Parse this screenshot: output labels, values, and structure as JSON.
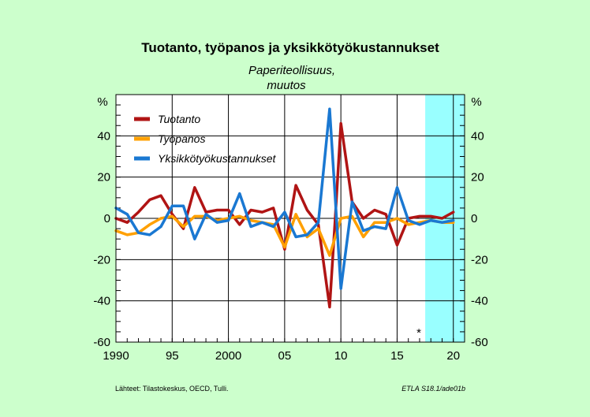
{
  "chart_data": {
    "type": "line",
    "title": "Tuotanto, työpanos ja yksikkötyökustannukset",
    "subtitle_line1": "Paperiteollisuus,",
    "subtitle_line2": "muutos",
    "unit_left": "%",
    "unit_right": "%",
    "ylim": [
      -60,
      60
    ],
    "y_ticks": [
      40,
      20,
      0,
      -20,
      -40,
      -60
    ],
    "y_tick_labels": [
      "40",
      "20",
      "0",
      "-20",
      "-40",
      "-60"
    ],
    "xlim": [
      1990,
      2021
    ],
    "x_ticks": [
      1990,
      1995,
      2000,
      2005,
      2010,
      2015,
      2020
    ],
    "x_tick_labels": [
      "1990",
      "95",
      "2000",
      "05",
      "10",
      "15",
      "20"
    ],
    "forecast_start": 2017.5,
    "forecast_marker": "*",
    "grid": true,
    "legend_position": "top-left",
    "series": [
      {
        "name": "Tuotanto",
        "color": "#b01414",
        "x": [
          1990,
          1991,
          1992,
          1993,
          1994,
          1995,
          1996,
          1997,
          1998,
          1999,
          2000,
          2001,
          2002,
          2003,
          2004,
          2005,
          2006,
          2007,
          2008,
          2009,
          2009.5,
          2010,
          2011,
          2012,
          2013,
          2014,
          2015,
          2016,
          2017,
          2018,
          2019,
          2020
        ],
        "values": [
          0,
          -2,
          3,
          9,
          11,
          2,
          -5,
          15,
          3,
          4,
          4,
          -3,
          4,
          3,
          5,
          -15,
          16,
          4,
          -3,
          -43,
          0,
          46,
          8,
          0,
          4,
          2,
          -13,
          0,
          1,
          1,
          0,
          3
        ]
      },
      {
        "name": "Työpanos",
        "color": "#ffa000",
        "x": [
          1990,
          1991,
          1992,
          1993,
          1994,
          1995,
          1996,
          1997,
          1998,
          1999,
          2000,
          2001,
          2002,
          2003,
          2004,
          2005,
          2006,
          2007,
          2008,
          2009,
          2010,
          2011,
          2012,
          2013,
          2014,
          2015,
          2016,
          2017,
          2018,
          2019,
          2020
        ],
        "values": [
          -6,
          -8,
          -7,
          -3,
          0,
          1,
          -4,
          1,
          1,
          -1,
          0,
          1,
          -1,
          -2,
          -3,
          -14,
          2,
          -9,
          -5,
          -18,
          0,
          1,
          -9,
          -2,
          -2,
          0,
          -3,
          -2,
          -1,
          -2,
          -2
        ]
      },
      {
        "name": "Yksikkötyökustannukset",
        "color": "#1a78d2",
        "x": [
          1990,
          1991,
          1992,
          1993,
          1994,
          1995,
          1996,
          1997,
          1998,
          1999,
          2000,
          2001,
          2002,
          2003,
          2004,
          2005,
          2006,
          2007,
          2008,
          2009,
          2010,
          2011,
          2012,
          2013,
          2014,
          2015,
          2016,
          2017,
          2018,
          2019,
          2020
        ],
        "values": [
          5,
          2,
          -7,
          -8,
          -4,
          6,
          6,
          -10,
          2,
          -2,
          -1,
          12,
          -4,
          -2,
          -4,
          3,
          -9,
          -8,
          -2,
          53,
          -34,
          8,
          -6,
          -4,
          -5,
          15,
          -1,
          -3,
          -1,
          -2,
          -1
        ]
      }
    ]
  },
  "footer": {
    "sources": "Lähteet:  Tilastokeskus, OECD, Tulli.",
    "reference": "ETLA S18.1/ade01b"
  }
}
